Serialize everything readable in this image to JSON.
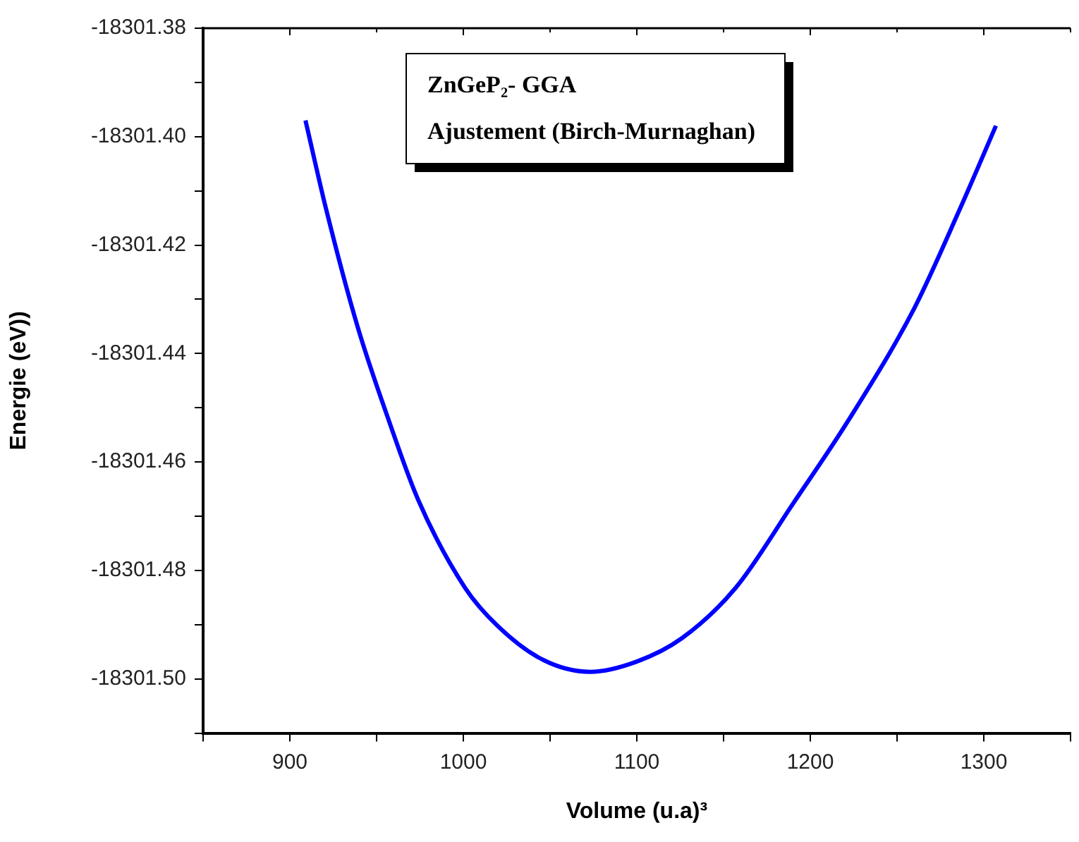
{
  "chart_data": {
    "type": "line",
    "xlabel": "Volume (u.a)³",
    "ylabel": "Energie (eV))",
    "annotations": [
      "ZnGeP₂- GGA",
      "Ajustement (Birch-Murnaghan)"
    ],
    "series": [
      {
        "color": "#0000ff",
        "x": [
          909,
          921,
          939,
          957,
          974,
          1001,
          1020,
          1046,
          1073,
          1100,
          1126,
          1157,
          1190,
          1222,
          1260,
          1286,
          1307
        ],
        "values": [
          -18301.397,
          -18301.4135,
          -18301.435,
          -18301.4523,
          -18301.467,
          -18301.4832,
          -18301.4903,
          -18301.4965,
          -18301.4987,
          -18301.4968,
          -18301.4925,
          -18301.4832,
          -18301.4677,
          -18301.4523,
          -18301.4316,
          -18301.4135,
          -18301.398
        ]
      }
    ],
    "xlim": [
      850,
      1350
    ],
    "xticks": [
      {
        "value": 850,
        "label": null
      },
      900,
      {
        "value": 950,
        "label": null
      },
      1000,
      {
        "value": 1050,
        "label": null
      },
      1100,
      {
        "value": 1150,
        "label": null
      },
      1200,
      {
        "value": 1250,
        "label": null
      },
      1300,
      {
        "value": 1350,
        "label": null
      }
    ],
    "ylim": [
      -18301.51,
      -18301.38
    ],
    "yticks": [
      {
        "value": -18301.51,
        "label": null
      },
      {
        "value": -18301.5,
        "label": "-18301.50"
      },
      {
        "value": -18301.49,
        "label": null
      },
      -18301.48,
      {
        "value": -18301.47,
        "label": null
      },
      -18301.46,
      {
        "value": -18301.45,
        "label": null
      },
      -18301.44,
      {
        "value": -18301.43,
        "label": null
      },
      -18301.42,
      {
        "value": -18301.41,
        "label": null
      },
      {
        "value": -18301.4,
        "label": "-18301.40"
      },
      {
        "value": -18301.39,
        "label": null
      },
      -18301.38
    ],
    "grid": false,
    "legend": false,
    "marker": "none",
    "line_style": "solid"
  }
}
